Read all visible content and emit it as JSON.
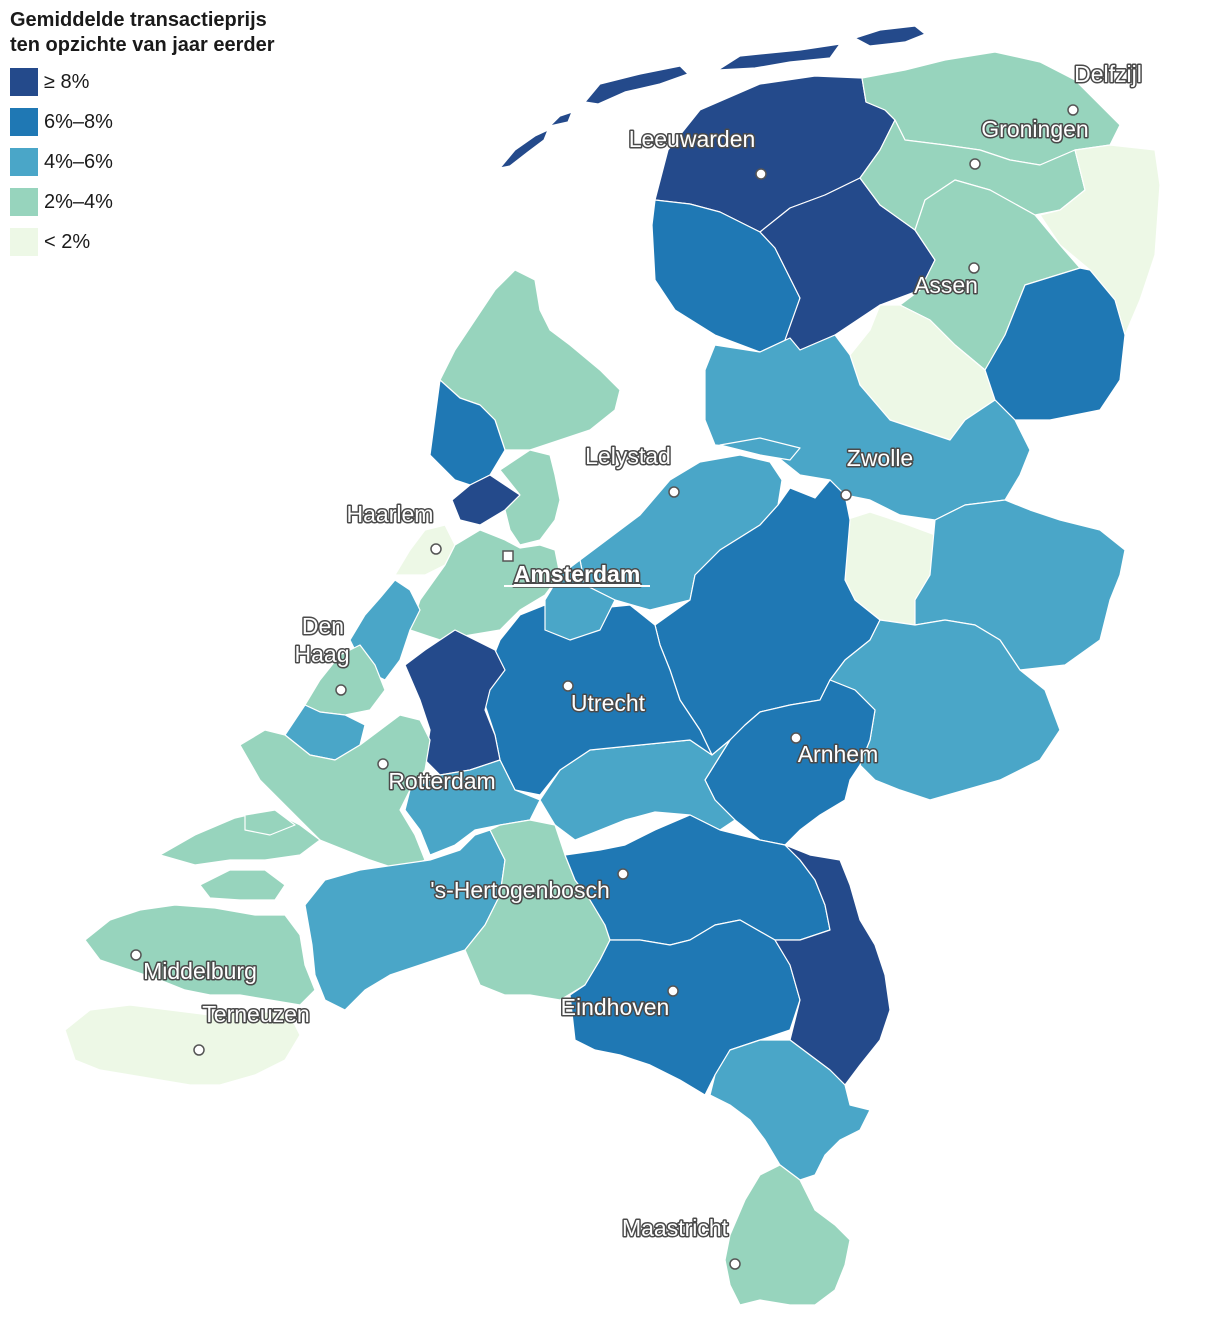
{
  "legend": {
    "title_line1": "Gemiddelde transactieprijs",
    "title_line2": "ten opzichte van jaar eerder",
    "items": [
      {
        "label": "≥ 8%",
        "color": "#244a8b"
      },
      {
        "label": "6%–8%",
        "color": "#1f78b4"
      },
      {
        "label": "4%–6%",
        "color": "#4aa6c8"
      },
      {
        "label": "2%–4%",
        "color": "#97d4bd"
      },
      {
        "label": "< 2%",
        "color": "#edf8e6"
      }
    ]
  },
  "cities": [
    {
      "name": "Delfzijl",
      "marker": "circle"
    },
    {
      "name": "Groningen",
      "marker": "circle"
    },
    {
      "name": "Leeuwarden",
      "marker": "circle"
    },
    {
      "name": "Assen",
      "marker": "circle"
    },
    {
      "name": "Lelystad",
      "marker": "circle"
    },
    {
      "name": "Zwolle",
      "marker": "circle"
    },
    {
      "name": "Haarlem",
      "marker": "circle"
    },
    {
      "name": "Amsterdam",
      "marker": "square",
      "capital": true
    },
    {
      "name": "Den",
      "marker": "none"
    },
    {
      "name": "Haag",
      "marker": "circle"
    },
    {
      "name": "Utrecht",
      "marker": "circle"
    },
    {
      "name": "Arnhem",
      "marker": "circle"
    },
    {
      "name": "Rotterdam",
      "marker": "circle"
    },
    {
      "name": "'s-Hertogenbosch",
      "marker": "circle"
    },
    {
      "name": "Middelburg",
      "marker": "circle"
    },
    {
      "name": "Terneuzen",
      "marker": "circle"
    },
    {
      "name": "Eindhoven",
      "marker": "circle"
    },
    {
      "name": "Maastricht",
      "marker": "circle"
    }
  ],
  "regions": [
    {
      "name": "Wadden-islands",
      "class": 0
    },
    {
      "name": "Noord-Friesland",
      "class": 0
    },
    {
      "name": "Zuidwest-Friesland",
      "class": 1
    },
    {
      "name": "Zuidoost-Friesland",
      "class": 0
    },
    {
      "name": "Noord-Groningen",
      "class": 3
    },
    {
      "name": "Overig Groningen",
      "class": 3
    },
    {
      "name": "Oost-Groningen",
      "class": 4
    },
    {
      "name": "Noord-Drenthe",
      "class": 3
    },
    {
      "name": "Zuidwest-Drenthe",
      "class": 4
    },
    {
      "name": "Zuidoost-Drenthe",
      "class": 1
    },
    {
      "name": "Noord-Overijssel",
      "class": 2
    },
    {
      "name": "Zuidwest-Overijssel",
      "class": 4
    },
    {
      "name": "Twente",
      "class": 2
    },
    {
      "name": "Flevoland",
      "class": 2
    },
    {
      "name": "Veluwe",
      "class": 1
    },
    {
      "name": "Achterhoek",
      "class": 2
    },
    {
      "name": "Arnhem/Nijmegen",
      "class": 1
    },
    {
      "name": "Zuidwest-Gelderland",
      "class": 2
    },
    {
      "name": "Utrecht",
      "class": 1
    },
    {
      "name": "Kop van Noord-Holland",
      "class": 3
    },
    {
      "name": "Alkmaar",
      "class": 1
    },
    {
      "name": "IJmond",
      "class": 0
    },
    {
      "name": "Zaanstreek",
      "class": 3
    },
    {
      "name": "Agglomeratie Haarlem",
      "class": 4
    },
    {
      "name": "Groot-Amsterdam",
      "class": 3
    },
    {
      "name": "Het Gooi en Vechtstreek",
      "class": 2
    },
    {
      "name": "Leiden",
      "class": 2
    },
    {
      "name": "Agglomeratie 's-Gravenhage",
      "class": 3
    },
    {
      "name": "Delft en Westland",
      "class": 2
    },
    {
      "name": "Oost-Zuid-Holland",
      "class": 0
    },
    {
      "name": "Groot-Rijnmond",
      "class": 3
    },
    {
      "name": "Zuidoost-Zuid-Holland",
      "class": 2
    },
    {
      "name": "Zeeland",
      "class": 3
    },
    {
      "name": "Zeeuws-Vlaanderen",
      "class": 4
    },
    {
      "name": "West-Noord-Brabant",
      "class": 2
    },
    {
      "name": "Midden-Noord-Brabant",
      "class": 3
    },
    {
      "name": "Noordoost-Noord-Brabant",
      "class": 1
    },
    {
      "name": "Zuidoost-Noord-Brabant",
      "class": 1
    },
    {
      "name": "Noord-Limburg",
      "class": 0
    },
    {
      "name": "Midden-Limburg",
      "class": 2
    },
    {
      "name": "Zuid-Limburg",
      "class": 3
    }
  ]
}
